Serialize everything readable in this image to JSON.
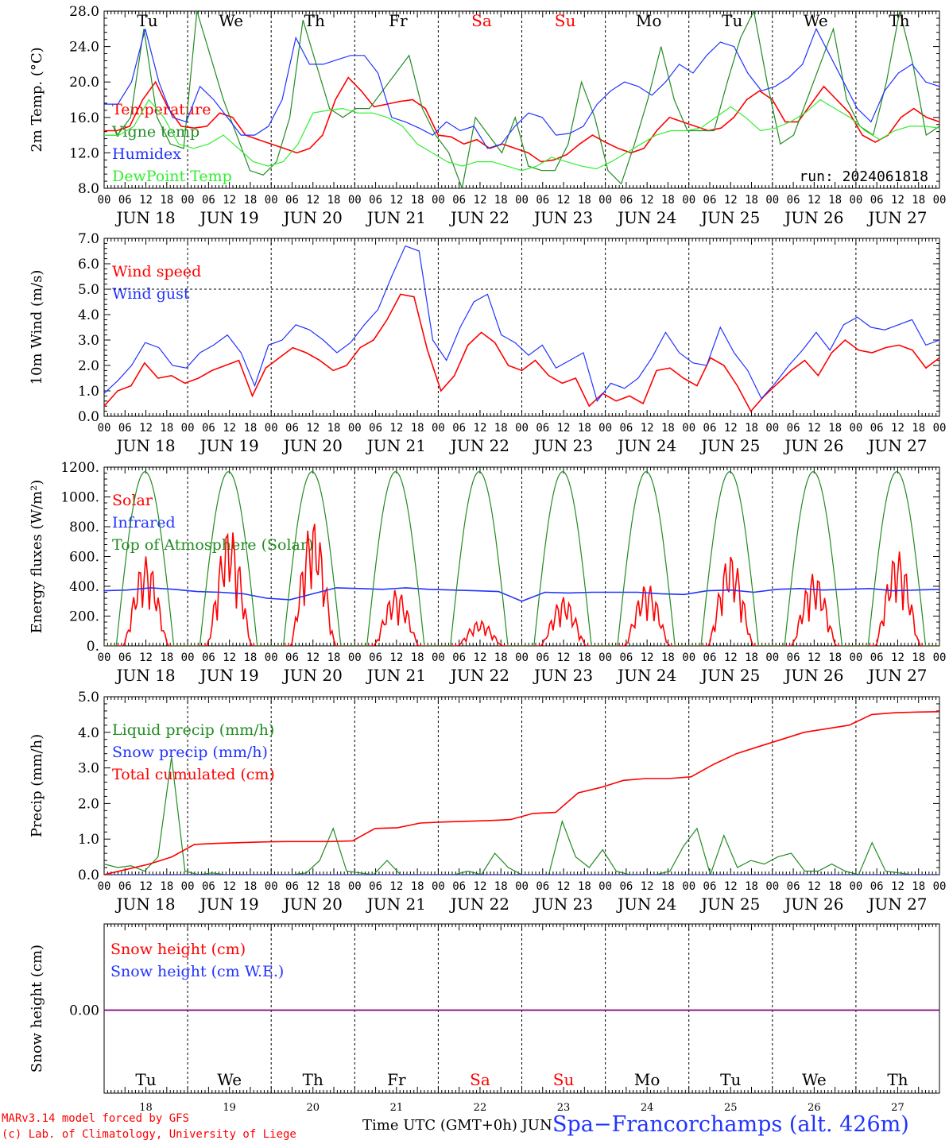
{
  "run_label": "run: 2024061818",
  "hours_ticks": [
    "00",
    "06",
    "12",
    "18"
  ],
  "day_labels": [
    "JUN 18",
    "JUN 19",
    "JUN 20",
    "JUN 21",
    "JUN 22",
    "JUN 23",
    "JUN 24",
    "JUN 25",
    "JUN 26",
    "JUN 27"
  ],
  "weekdays": [
    "Tu",
    "We",
    "Th",
    "Fr",
    "Sa",
    "Su",
    "Mo",
    "Tu",
    "We",
    "Th"
  ],
  "weekday_colors": [
    "#000000",
    "#000000",
    "#000000",
    "#000000",
    "#ff0000",
    "#ff0000",
    "#000000",
    "#000000",
    "#000000",
    "#000000"
  ],
  "bottom_day_numbers": [
    "18",
    "19",
    "20",
    "21",
    "22",
    "23",
    "24",
    "25",
    "26",
    "27"
  ],
  "footer": {
    "model_line": "MARv3.14 model forced by GFS",
    "copyright_line": "(c) Lab. of Climatology, University of Liege",
    "time_label": "Time UTC (GMT+0h) JUN",
    "station": "Spa−Francorchamps (alt. 426m)"
  },
  "chart_data": [
    {
      "type": "line",
      "ylabel": "2m Temp. (°C)",
      "ylim": [
        8,
        28
      ],
      "yticks": [
        "8.0",
        "12.0",
        "16.0",
        "20.0",
        "24.0",
        "28.0"
      ],
      "legend_placement": "top-left",
      "series": [
        {
          "name": "Temperature",
          "color": "#ff0000",
          "values": [
            14.5,
            14.5,
            15,
            18,
            20,
            17,
            15,
            14.8,
            15,
            16.5,
            16,
            14,
            13.5,
            13,
            12.5,
            12,
            12.5,
            14,
            18,
            20.5,
            19,
            17.2,
            17.5,
            17.8,
            18,
            17,
            14,
            13.8,
            13,
            13.5,
            12.5,
            13,
            12.5,
            12,
            11,
            11.2,
            11.8,
            13,
            14,
            13.2,
            12.5,
            12,
            12.5,
            14.5,
            16,
            15.5,
            15,
            14.5,
            14.8,
            16,
            18,
            19,
            18,
            15.5,
            15.5,
            17.5,
            19.5,
            18,
            16.5,
            14,
            13.2,
            14,
            16,
            17,
            16,
            15.5
          ]
        },
        {
          "name": "Vigne temp",
          "color": "#228b22",
          "values": [
            14,
            14,
            16,
            26,
            16,
            13,
            12.5,
            28,
            23,
            18,
            14,
            10,
            9.5,
            11,
            16,
            27,
            22,
            17,
            16,
            17,
            17,
            19,
            21,
            23,
            17,
            14,
            12,
            8,
            16,
            14,
            12,
            16,
            10.5,
            10,
            10,
            13,
            20,
            16,
            10,
            8.5,
            13,
            18,
            24,
            18,
            14.5,
            14.5,
            14.5,
            20,
            25,
            28,
            20,
            13,
            14,
            18,
            22,
            26,
            18,
            15,
            14,
            20,
            28,
            22,
            14,
            15
          ]
        },
        {
          "name": "Humidex",
          "color": "#2233ff",
          "values": [
            17.5,
            17.5,
            20,
            26,
            20,
            16,
            15.5,
            19.5,
            18,
            16,
            14,
            14,
            15,
            18,
            25,
            22,
            22,
            22.5,
            23,
            23,
            21,
            16,
            15.5,
            14.8,
            14,
            15.5,
            14.5,
            15,
            12.5,
            13,
            15,
            16.5,
            16,
            14,
            14.2,
            15,
            17.5,
            19,
            20,
            19.5,
            18.5,
            20,
            22,
            21,
            23,
            24.5,
            24,
            21,
            19,
            19.5,
            20.5,
            22,
            26,
            23,
            20,
            17,
            15.5,
            19,
            21,
            22,
            20,
            19.5
          ]
        },
        {
          "name": "DewPoint Temp",
          "color": "#33ee33",
          "values": [
            14,
            14,
            15,
            18,
            16,
            13,
            12.5,
            13,
            14,
            12.5,
            11,
            10.5,
            11,
            13,
            16.5,
            16.8,
            17,
            16.5,
            16.5,
            16,
            15,
            13,
            12,
            11,
            10.5,
            11,
            11,
            10.5,
            10,
            10.5,
            11.5,
            11,
            10.5,
            10.2,
            11,
            12,
            13,
            14,
            14.5,
            14.5,
            14.8,
            16,
            17.2,
            16,
            14.5,
            14.8,
            15.5,
            16.5,
            18,
            17,
            16,
            14.5,
            13.5,
            14.5,
            15,
            15,
            14.8
          ]
        }
      ]
    },
    {
      "type": "line",
      "ylabel": "10m Wind (m/s)",
      "ylim": [
        0,
        7
      ],
      "yticks": [
        "0.0",
        "1.0",
        "2.0",
        "3.0",
        "4.0",
        "5.0",
        "6.0",
        "7.0"
      ],
      "legend_placement": "top-left",
      "series": [
        {
          "name": "Wind speed",
          "color": "#ff0000",
          "values": [
            0.4,
            1.0,
            1.2,
            2.1,
            1.5,
            1.6,
            1.3,
            1.5,
            1.8,
            2.0,
            2.2,
            0.8,
            1.9,
            2.3,
            2.7,
            2.5,
            2.2,
            1.8,
            2.0,
            2.7,
            3.0,
            3.8,
            4.8,
            4.7,
            2.6,
            1.0,
            1.6,
            2.8,
            3.3,
            2.9,
            2.0,
            1.8,
            2.2,
            1.6,
            1.3,
            1.5,
            0.4,
            0.9,
            0.6,
            0.8,
            0.5,
            1.8,
            1.9,
            1.5,
            1.2,
            2.3,
            2.0,
            1.2,
            0.2,
            0.8,
            1.3,
            1.8,
            2.2,
            1.6,
            2.5,
            3.0,
            2.6,
            2.5,
            2.7,
            2.8,
            2.6,
            1.9,
            2.3
          ]
        },
        {
          "name": "Wind gust",
          "color": "#2233ff",
          "values": [
            0.9,
            1.4,
            2.0,
            2.9,
            2.7,
            2.0,
            1.9,
            2.5,
            2.8,
            3.2,
            2.5,
            1.2,
            2.8,
            3.0,
            3.6,
            3.4,
            3.0,
            2.5,
            2.9,
            3.6,
            4.2,
            5.5,
            6.7,
            6.5,
            3.0,
            2.2,
            3.5,
            4.5,
            4.8,
            3.2,
            2.9,
            2.4,
            2.8,
            1.9,
            2.2,
            2.5,
            0.6,
            1.3,
            1.1,
            1.5,
            2.3,
            3.3,
            2.5,
            2.1,
            2.0,
            3.5,
            2.5,
            1.8,
            0.7,
            1.3,
            2.0,
            2.6,
            3.3,
            2.6,
            3.6,
            3.9,
            3.5,
            3.4,
            3.6,
            3.8,
            2.8,
            3.0
          ]
        }
      ]
    },
    {
      "type": "line",
      "ylabel": "Energy fluxes (W/m²)",
      "ylim": [
        0,
        1200
      ],
      "yticks": [
        "0.",
        "200.",
        "400.",
        "600.",
        "800.",
        "1000.",
        "1200."
      ],
      "legend_placement": "top-left",
      "series": [
        {
          "name": "Solar",
          "color": "#ff0000",
          "daily_peaks": [
            600,
            800,
            850,
            380,
            170,
            330,
            420,
            620,
            490,
            640
          ]
        },
        {
          "name": "Infrared",
          "color": "#2233ff",
          "values": [
            370,
            375,
            390,
            380,
            365,
            360,
            350,
            320,
            310,
            350,
            390,
            385,
            380,
            390,
            380,
            375,
            370,
            365,
            300,
            360,
            355,
            360,
            360,
            360,
            350,
            345,
            370,
            375,
            360,
            380,
            385,
            375,
            380,
            385,
            370,
            375,
            380
          ]
        },
        {
          "name": "Top of Atmosphere (Solar)",
          "color": "#228b22",
          "daily_peaks": [
            1170,
            1170,
            1170,
            1170,
            1170,
            1170,
            1170,
            1170,
            1170,
            1170
          ]
        }
      ]
    },
    {
      "type": "line",
      "ylabel": "Precip (mm/h)",
      "ylim": [
        0,
        5
      ],
      "yticks": [
        "0.0",
        "1.0",
        "2.0",
        "3.0",
        "4.0",
        "5.0"
      ],
      "legend_placement": "top-left",
      "series": [
        {
          "name": "Liquid precip (mm/h)",
          "color": "#228b22",
          "values": [
            0.3,
            0.2,
            0.25,
            0.1,
            0.5,
            3.3,
            0.1,
            0.0,
            0.05,
            0.0,
            0.0,
            0.0,
            0.0,
            0.0,
            0.0,
            0.05,
            0.4,
            1.3,
            0.1,
            0.05,
            0.0,
            0.4,
            0.0,
            0.0,
            0.0,
            0.0,
            0.0,
            0.1,
            0.0,
            0.6,
            0.2,
            0.0,
            0.0,
            0.0,
            1.5,
            0.5,
            0.2,
            0.7,
            0.1,
            0.0,
            0.0,
            0.0,
            0.1,
            0.8,
            1.3,
            0.0,
            1.1,
            0.2,
            0.4,
            0.3,
            0.5,
            0.6,
            0.1,
            0.1,
            0.3,
            0.1,
            0.0,
            0.9,
            0.1,
            0.05,
            0.0,
            0.0,
            0.0
          ]
        },
        {
          "name": "Snow precip (mm/h)",
          "color": "#2233ff",
          "values": [
            0,
            0,
            0,
            0,
            0,
            0,
            0,
            0,
            0,
            0
          ]
        },
        {
          "name": "Total cumulated (cm)",
          "color": "#ff0000",
          "values": [
            0.0,
            0.15,
            0.3,
            0.5,
            0.85,
            0.88,
            0.9,
            0.92,
            0.93,
            0.93,
            0.93,
            0.95,
            1.3,
            1.32,
            1.45,
            1.48,
            1.5,
            1.52,
            1.55,
            1.72,
            1.75,
            2.3,
            2.45,
            2.65,
            2.7,
            2.7,
            2.75,
            3.1,
            3.4,
            3.6,
            3.8,
            4.0,
            4.1,
            4.2,
            4.5,
            4.55,
            4.57,
            4.58
          ]
        }
      ]
    },
    {
      "type": "line",
      "ylabel": "Snow height (cm)",
      "yticks": [
        "0.00"
      ],
      "legend_placement": "top-left",
      "series": [
        {
          "name": "Snow height (cm)",
          "color": "#ff0000",
          "values": [
            0,
            0
          ]
        },
        {
          "name": "Snow height (cm W.E.)",
          "color": "#2233ff",
          "values": [
            0,
            0
          ]
        }
      ]
    }
  ]
}
